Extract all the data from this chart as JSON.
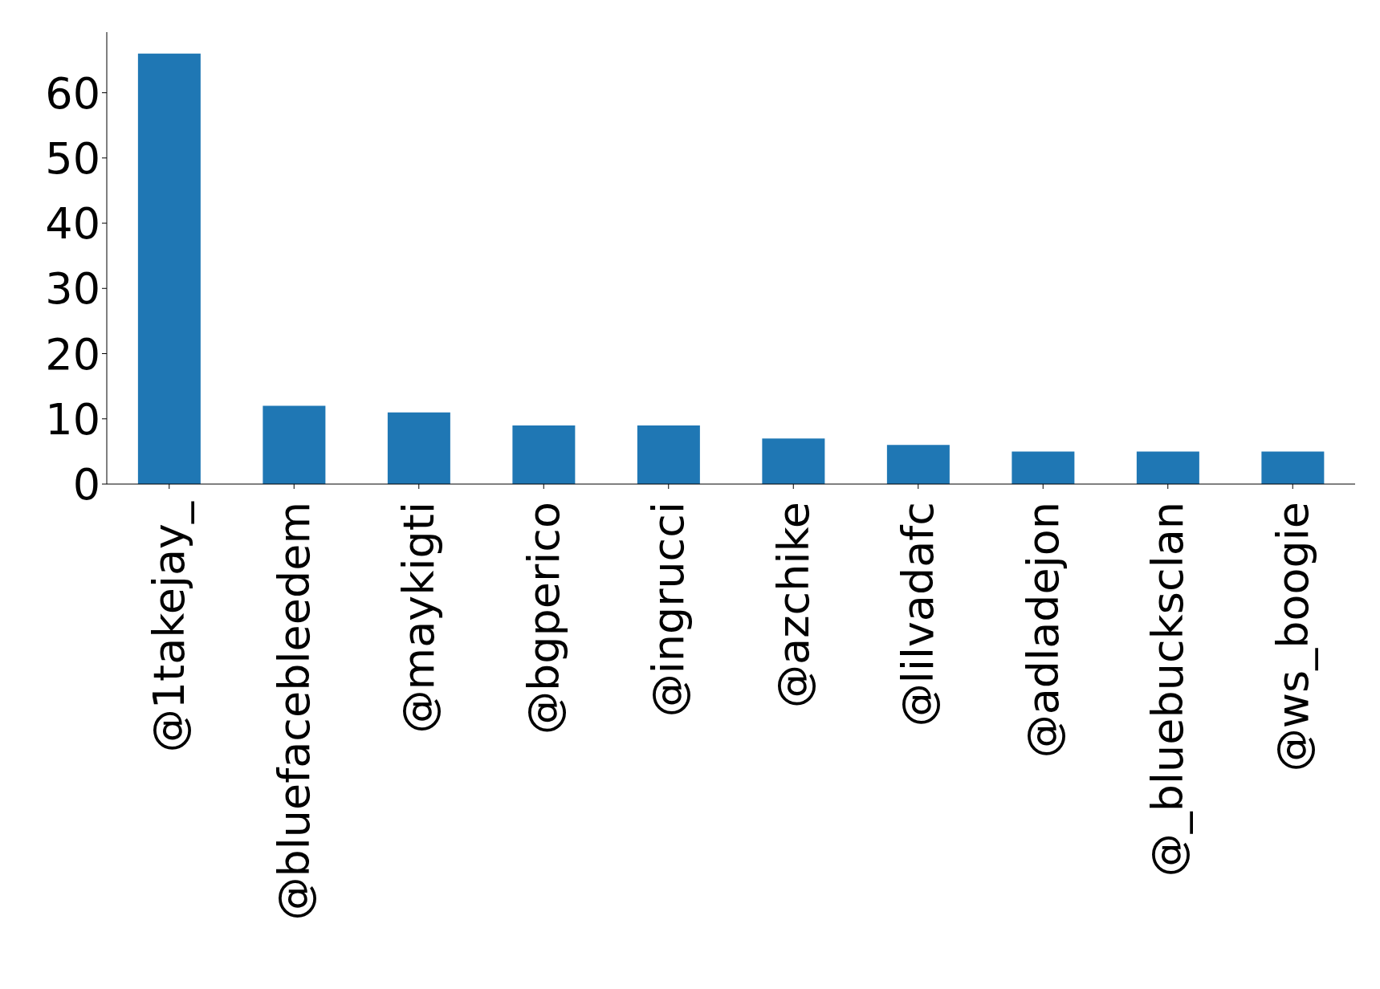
{
  "chart_data": {
    "type": "bar",
    "categories": [
      "@1takejay_",
      "@bluefacebleedem",
      "@maykigti",
      "@bgperico",
      "@ingrucci",
      "@azchike",
      "@lilvadafc",
      "@adladejon",
      "@_bluebucksclan",
      "@ws_boogie"
    ],
    "values": [
      66,
      12,
      11,
      9,
      9,
      7,
      6,
      5,
      5,
      5
    ],
    "color": "#1f77b4",
    "ylim": [
      0,
      69.3
    ],
    "yticks": [
      0,
      10,
      20,
      30,
      40,
      50,
      60
    ],
    "grid": false
  }
}
